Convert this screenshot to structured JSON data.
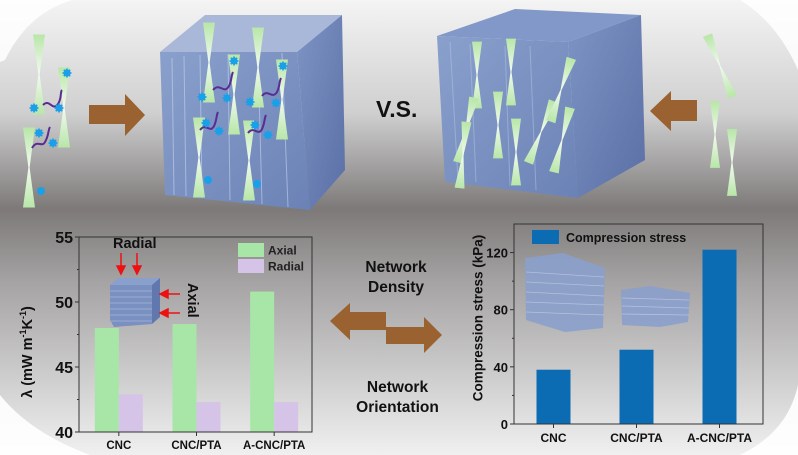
{
  "top_schematic": {
    "vs_label": "V.S.",
    "colors": {
      "arrow": "#9a6230",
      "cube": "#6f86b8",
      "crystal": "#c6ecb8",
      "dot": "#1aa0e8",
      "chain": "#5a2d90"
    }
  },
  "middle": {
    "top_label_line1": "Network",
    "top_label_line2": "Density",
    "bottom_label_line1": "Network",
    "bottom_label_line2": "Orientation"
  },
  "inset_labels": {
    "radial": "Radial",
    "axial": "Axial"
  },
  "chart_data": [
    {
      "type": "bar",
      "title": "",
      "xlabel": "",
      "ylabel": "λ (mW m⁻¹K⁻¹)",
      "ylabel_parts": [
        "λ (mW m",
        "-1",
        "K",
        "-1",
        ")"
      ],
      "categories": [
        "CNC",
        "CNC/PTA",
        "A-CNC/PTA"
      ],
      "series": [
        {
          "name": "Axial",
          "color": "#a8e6a8",
          "values": [
            48.0,
            48.3,
            50.8
          ]
        },
        {
          "name": "Radial",
          "color": "#d5c4e8",
          "values": [
            42.9,
            42.3,
            42.3
          ]
        }
      ],
      "ylim": [
        40,
        55
      ],
      "yticks": [
        "40",
        "45",
        "50",
        "55"
      ],
      "ytick_values": [
        40,
        45,
        50,
        55
      ],
      "legend": "top-right",
      "grid": false
    },
    {
      "type": "bar",
      "title": "",
      "xlabel": "",
      "ylabel": "Compression stress (kPa)",
      "categories": [
        "CNC",
        "CNC/PTA",
        "A-CNC/PTA"
      ],
      "series": [
        {
          "name": "Compression stress",
          "color": "#0b6bb3",
          "values": [
            38,
            52,
            122
          ]
        }
      ],
      "ylim": [
        0,
        140
      ],
      "yticks": [
        "0",
        "40",
        "80",
        "120"
      ],
      "ytick_values": [
        0,
        40,
        80,
        120
      ],
      "legend": "top-left",
      "grid": false
    }
  ]
}
